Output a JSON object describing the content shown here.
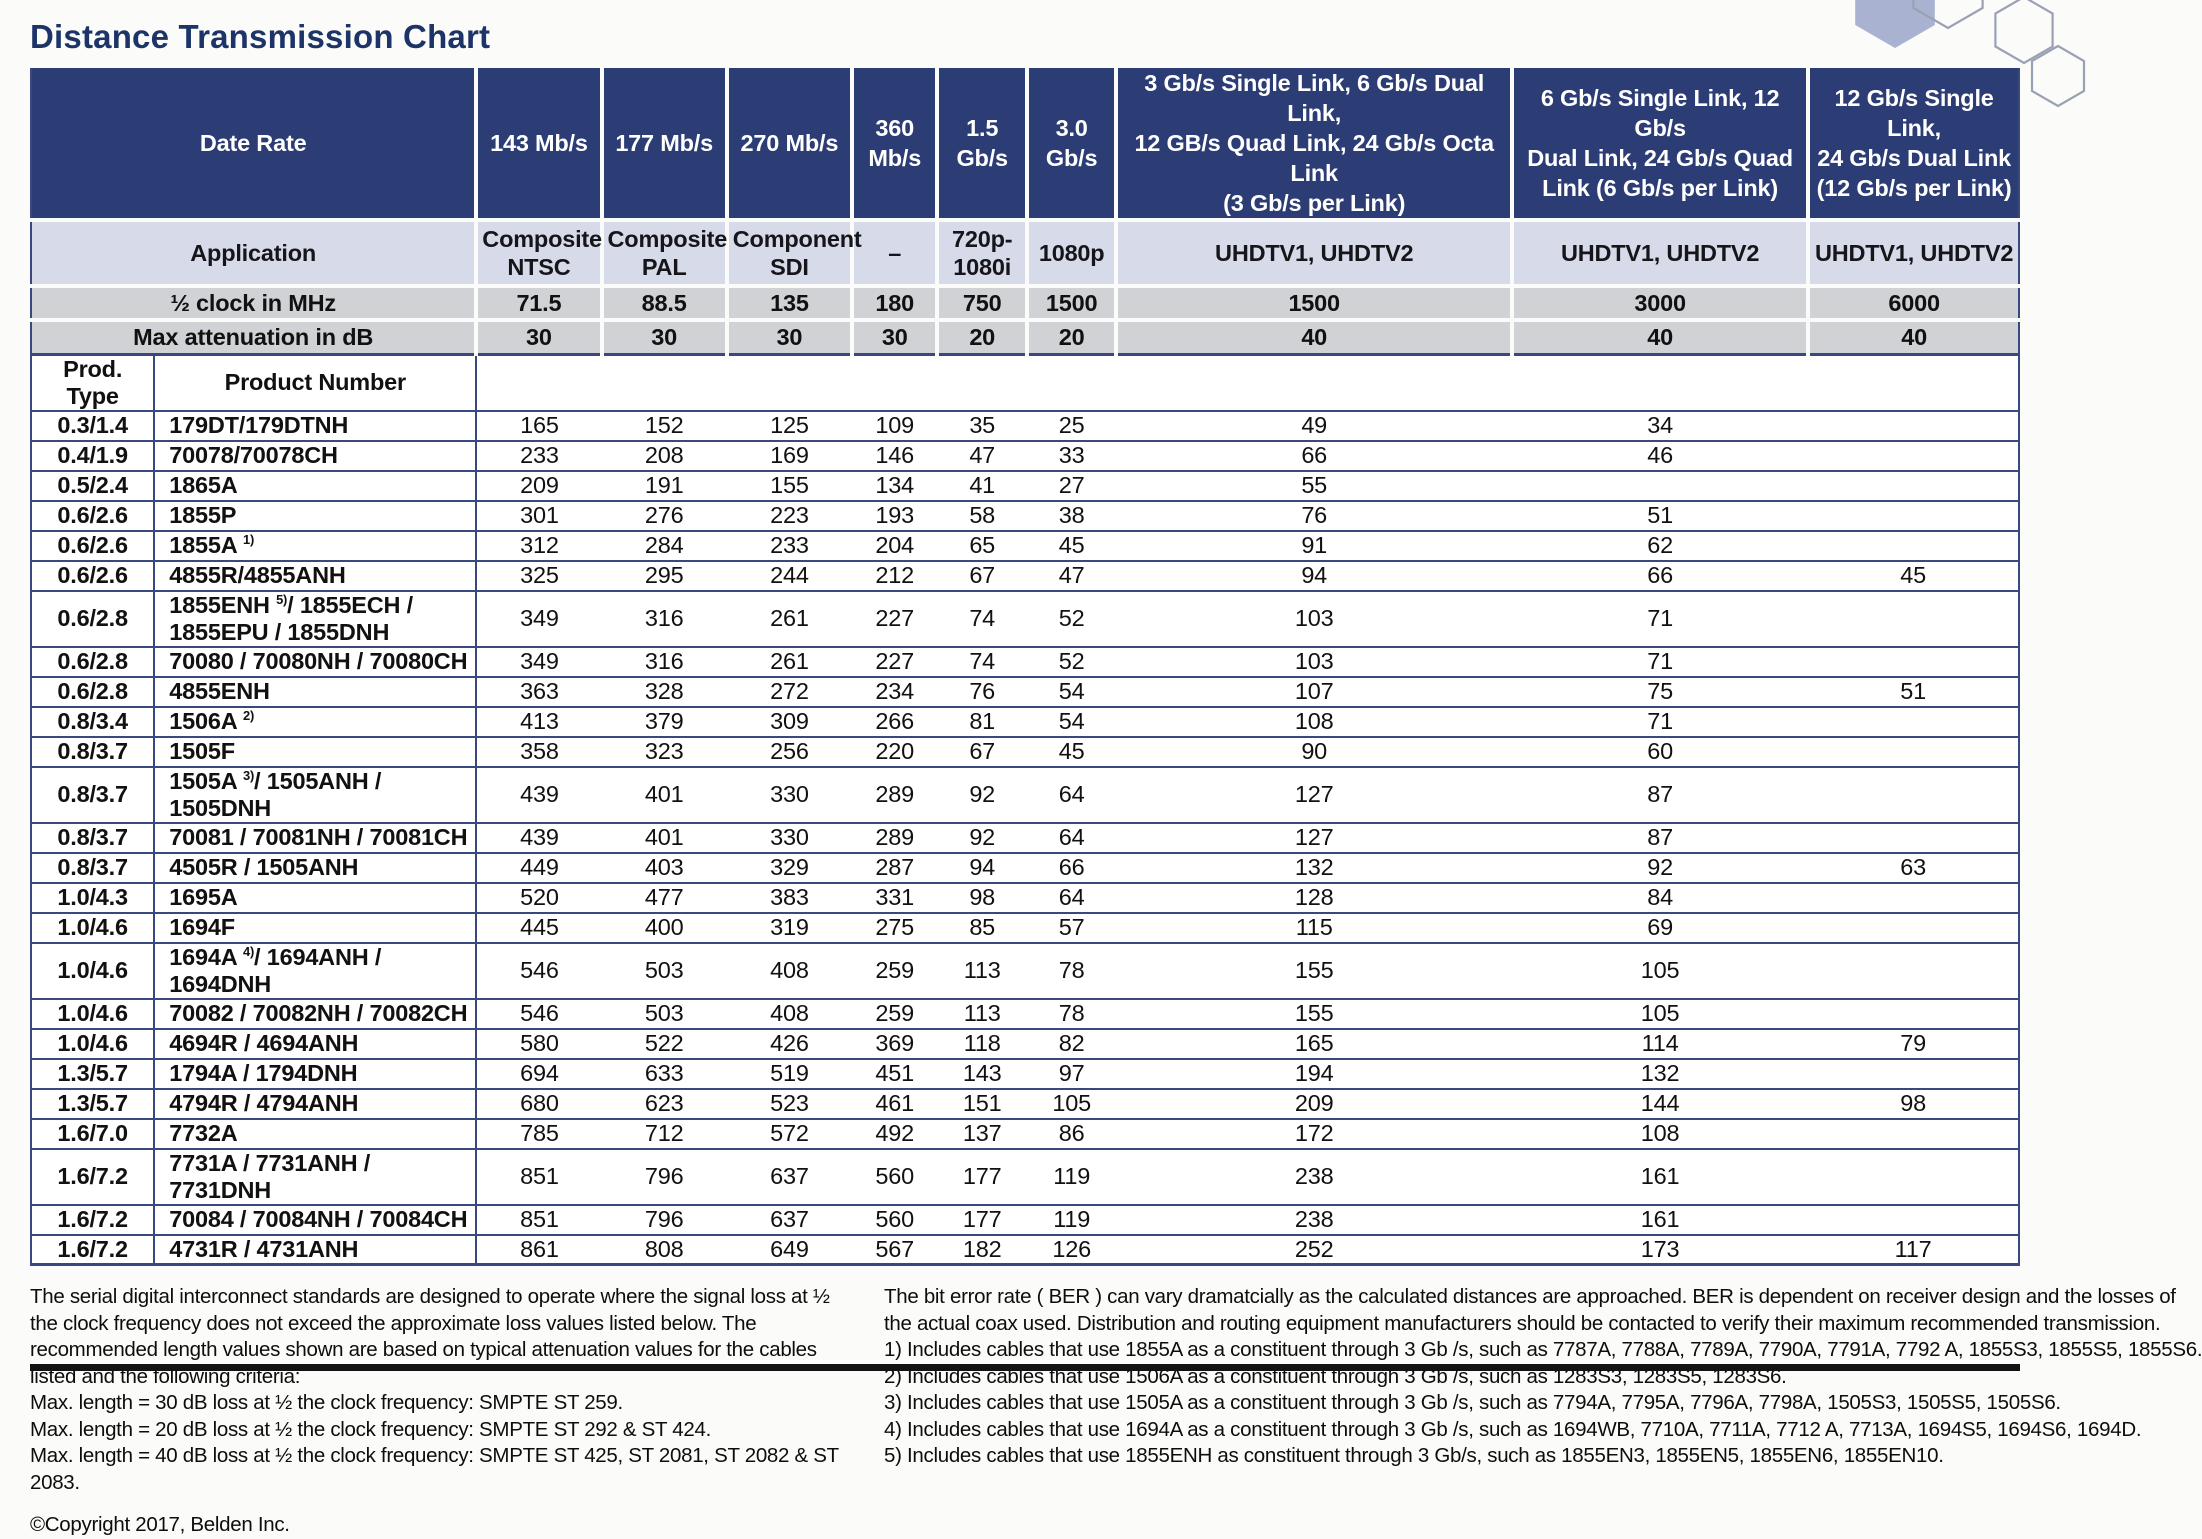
{
  "page": {
    "title": "Distance Transmission Chart"
  },
  "colors": {
    "header_blue": "#2c3c74",
    "application_row": "#d7dbe9",
    "gray_row": "#d1d2d6",
    "rule_navy": "#39487f",
    "title_blue": "#1d3468"
  },
  "table": {
    "corner_labels": {
      "date_rate": "Date Rate",
      "application": "Application",
      "half_clock": "½ clock in MHz",
      "max_attenuation": "Max attenuation in dB",
      "prod_type": "Prod. Type",
      "product_number": "Product Number"
    },
    "data_rate_columns": [
      "143 Mb/s",
      "177 Mb/s",
      "270 Mb/s",
      "360\nMb/s",
      "1.5\nGb/s",
      "3.0\nGb/s",
      "3 Gb/s Single Link, 6 Gb/s Dual Link,\n12 GB/s Quad Link, 24 Gb/s Octa Link\n(3 Gb/s per Link)",
      "6 Gb/s Single Link, 12 Gb/s\nDual Link, 24 Gb/s Quad\nLink (6 Gb/s per Link)",
      "12 Gb/s Single Link,\n24 Gb/s Dual Link\n(12 Gb/s per Link)"
    ],
    "application_row": [
      "Composite\nNTSC",
      "Composite\nPAL",
      "Component\nSDI",
      "–",
      "720p-\n1080i",
      "1080p",
      "UHDTV1, UHDTV2",
      "UHDTV1, UHDTV2",
      "UHDTV1, UHDTV2"
    ],
    "half_clock_row": [
      "71.5",
      "88.5",
      "135",
      "180",
      "750",
      "1500",
      "1500",
      "3000",
      "6000"
    ],
    "max_attenuation_row": [
      "30",
      "30",
      "30",
      "30",
      "20",
      "20",
      "40",
      "40",
      "40"
    ],
    "rows": [
      {
        "type": "0.3/1.4",
        "product": "179DT/179DTNH",
        "values": [
          "165",
          "152",
          "125",
          "109",
          "35",
          "25",
          "49",
          "34",
          ""
        ]
      },
      {
        "type": "0.4/1.9",
        "product": "70078/70078CH",
        "values": [
          "233",
          "208",
          "169",
          "146",
          "47",
          "33",
          "66",
          "46",
          ""
        ]
      },
      {
        "type": "0.5/2.4",
        "product": "1865A",
        "values": [
          "209",
          "191",
          "155",
          "134",
          "41",
          "27",
          "55",
          "",
          ""
        ]
      },
      {
        "type": "0.6/2.6",
        "product": "1855P",
        "values": [
          "301",
          "276",
          "223",
          "193",
          "58",
          "38",
          "76",
          "51",
          ""
        ]
      },
      {
        "type": "0.6/2.6",
        "product": "1855A ^1)^",
        "values": [
          "312",
          "284",
          "233",
          "204",
          "65",
          "45",
          "91",
          "62",
          ""
        ]
      },
      {
        "type": "0.6/2.6",
        "product": "4855R/4855ANH",
        "values": [
          "325",
          "295",
          "244",
          "212",
          "67",
          "47",
          "94",
          "66",
          "45"
        ]
      },
      {
        "type": "0.6/2.8",
        "product": "1855ENH ^5)^/ 1855ECH /\n1855EPU / 1855DNH",
        "values": [
          "349",
          "316",
          "261",
          "227",
          "74",
          "52",
          "103",
          "71",
          ""
        ]
      },
      {
        "type": "0.6/2.8",
        "product": "70080 / 70080NH / 70080CH",
        "values": [
          "349",
          "316",
          "261",
          "227",
          "74",
          "52",
          "103",
          "71",
          ""
        ]
      },
      {
        "type": "0.6/2.8",
        "product": "4855ENH",
        "values": [
          "363",
          "328",
          "272",
          "234",
          "76",
          "54",
          "107",
          "75",
          "51"
        ]
      },
      {
        "type": "0.8/3.4",
        "product": "1506A ^2)^",
        "values": [
          "413",
          "379",
          "309",
          "266",
          "81",
          "54",
          "108",
          "71",
          ""
        ]
      },
      {
        "type": "0.8/3.7",
        "product": "1505F",
        "values": [
          "358",
          "323",
          "256",
          "220",
          "67",
          "45",
          "90",
          "60",
          ""
        ]
      },
      {
        "type": "0.8/3.7",
        "product": "1505A ^3)^/ 1505ANH / 1505DNH",
        "values": [
          "439",
          "401",
          "330",
          "289",
          "92",
          "64",
          "127",
          "87",
          ""
        ]
      },
      {
        "type": "0.8/3.7",
        "product": "70081 / 70081NH / 70081CH",
        "values": [
          "439",
          "401",
          "330",
          "289",
          "92",
          "64",
          "127",
          "87",
          ""
        ]
      },
      {
        "type": "0.8/3.7",
        "product": "4505R / 1505ANH",
        "values": [
          "449",
          "403",
          "329",
          "287",
          "94",
          "66",
          "132",
          "92",
          "63"
        ]
      },
      {
        "type": "1.0/4.3",
        "product": "1695A",
        "values": [
          "520",
          "477",
          "383",
          "331",
          "98",
          "64",
          "128",
          "84",
          ""
        ]
      },
      {
        "type": "1.0/4.6",
        "product": "1694F",
        "values": [
          "445",
          "400",
          "319",
          "275",
          "85",
          "57",
          "115",
          "69",
          ""
        ]
      },
      {
        "type": "1.0/4.6",
        "product": "1694A ^4)^/ 1694ANH / 1694DNH",
        "values": [
          "546",
          "503",
          "408",
          "259",
          "113",
          "78",
          "155",
          "105",
          ""
        ]
      },
      {
        "type": "1.0/4.6",
        "product": "70082 / 70082NH / 70082CH",
        "values": [
          "546",
          "503",
          "408",
          "259",
          "113",
          "78",
          "155",
          "105",
          ""
        ]
      },
      {
        "type": "1.0/4.6",
        "product": "4694R / 4694ANH",
        "values": [
          "580",
          "522",
          "426",
          "369",
          "118",
          "82",
          "165",
          "114",
          "79"
        ]
      },
      {
        "type": "1.3/5.7",
        "product": "1794A / 1794DNH",
        "values": [
          "694",
          "633",
          "519",
          "451",
          "143",
          "97",
          "194",
          "132",
          ""
        ]
      },
      {
        "type": "1.3/5.7",
        "product": "4794R / 4794ANH",
        "values": [
          "680",
          "623",
          "523",
          "461",
          "151",
          "105",
          "209",
          "144",
          "98"
        ]
      },
      {
        "type": "1.6/7.0",
        "product": "7732A",
        "values": [
          "785",
          "712",
          "572",
          "492",
          "137",
          "86",
          "172",
          "108",
          ""
        ]
      },
      {
        "type": "1.6/7.2",
        "product": "7731A / 7731ANH / 7731DNH",
        "values": [
          "851",
          "796",
          "637",
          "560",
          "177",
          "119",
          "238",
          "161",
          ""
        ]
      },
      {
        "type": "1.6/7.2",
        "product": "70084 / 70084NH / 70084CH",
        "values": [
          "851",
          "796",
          "637",
          "560",
          "177",
          "119",
          "238",
          "161",
          ""
        ]
      },
      {
        "type": "1.6/7.2",
        "product": "4731R / 4731ANH",
        "values": [
          "861",
          "808",
          "649",
          "567",
          "182",
          "126",
          "252",
          "173",
          "117"
        ]
      }
    ]
  },
  "footnotes": {
    "left_paragraph": "The serial digital interconnect standards are designed to operate where the signal loss at ½ the clock frequency does not exceed the approximate loss values listed below. The recommended length values shown are based on typical attenuation values for the cables listed and the following criteria:",
    "criteria": [
      "Max. length = 30 dB loss at ½ the clock frequency: SMPTE ST 259.",
      "Max. length = 20 dB loss at ½ the clock frequency: SMPTE ST 292 & ST 424.",
      "Max. length = 40 dB loss at ½ the clock frequency: SMPTE ST 425, ST 2081, ST 2082 & ST 2083."
    ],
    "copyright": "©Copyright 2017, Belden Inc.",
    "right_paragraph": "The bit error rate ( BER ) can vary dramatcially as the calculated distances are approached. BER is dependent on receiver design and the losses of the actual coax used. Distribution and routing equipment manufacturers should be contacted to verify their maximum recommended transmission.",
    "notes": [
      "1) Includes cables that use 1855A as a constituent through 3 Gb /s, such as 7787A, 7788A, 7789A, 7790A, 7791A, 7792 A, 1855S3, 1855S5, 1855S6.",
      "2) Includes cables that use 1506A as a constituent through 3 Gb /s, such as 1283S3, 1283S5, 1283S6.",
      "3) Includes cables that use 1505A as a constituent through 3 Gb /s, such as 7794A, 7795A, 7796A, 7798A, 1505S3, 1505S5, 1505S6.",
      "4) Includes cables that use 1694A as a constituent through 3 Gb /s, such as 1694WB, 7710A, 7711A, 7712 A, 7713A, 1694S5, 1694S6, 1694D.",
      "5) Includes cables that use 1855ENH as constituent through 3 Gb/s, such as 1855EN3, 1855EN5, 1855EN6, 1855EN10."
    ]
  }
}
